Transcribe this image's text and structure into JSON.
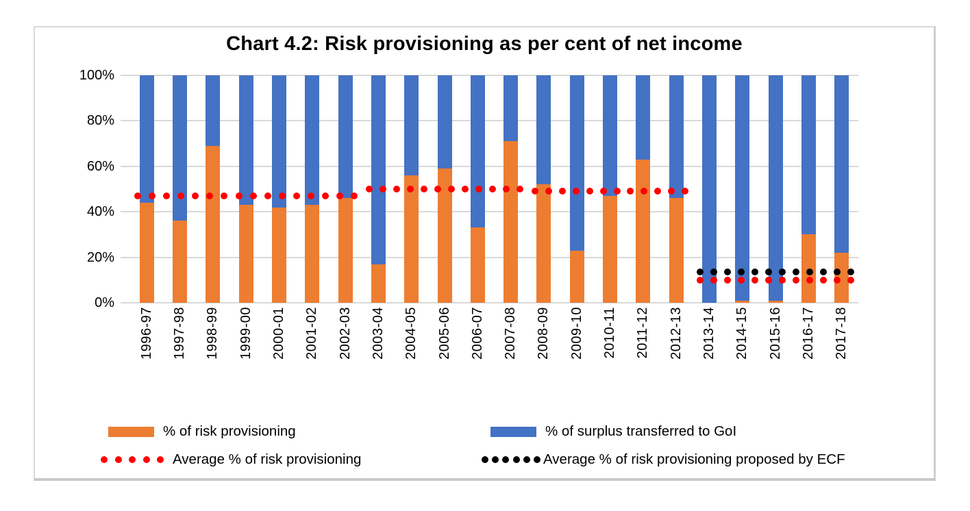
{
  "chart_title": "Chart 4.2: Risk provisioning as per cent of net income",
  "y_axis": {
    "tick_labels": [
      "100%",
      "80%",
      "60%",
      "40%",
      "20%",
      "0%"
    ],
    "tick_values": [
      100,
      80,
      60,
      40,
      20,
      0
    ]
  },
  "chart_data": {
    "type": "bar",
    "stacked": true,
    "stacked_to_100_percent": true,
    "title": "Chart 4.2: Risk provisioning as per cent of net income",
    "categories": [
      "1996-97",
      "1997-98",
      "1998-99",
      "1999-00",
      "2000-01",
      "2001-02",
      "2002-03",
      "2003-04",
      "2004-05",
      "2005-06",
      "2006-07",
      "2007-08",
      "2008-09",
      "2009-10",
      "2010-11",
      "2011-12",
      "2012-13",
      "2013-14",
      "2014-15",
      "2015-16",
      "2016-17",
      "2017-18"
    ],
    "series": [
      {
        "name": "% of risk provisioning",
        "color": "#ED7D31",
        "values": [
          44,
          36,
          69,
          43,
          42,
          43,
          46,
          17,
          56,
          59,
          33,
          71,
          52,
          23,
          47,
          63,
          46,
          0,
          1,
          1,
          30,
          22
        ]
      },
      {
        "name": "% of surplus transferred to GoI",
        "color": "#4472C4",
        "values": [
          56,
          64,
          31,
          57,
          58,
          57,
          54,
          83,
          44,
          41,
          67,
          29,
          48,
          77,
          53,
          37,
          54,
          100,
          99,
          99,
          70,
          78
        ]
      }
    ],
    "average_lines": [
      {
        "name": "Average % of risk provisioning",
        "color": "#FF0000",
        "style": "dotted",
        "segments": [
          {
            "from": "1996-97",
            "to": "2002-03",
            "value": 47
          },
          {
            "from": "2003-04",
            "to": "2007-08",
            "value": 50
          },
          {
            "from": "2008-09",
            "to": "2012-13",
            "value": 49
          },
          {
            "from": "2013-14",
            "to": "2017-18",
            "value": 10
          }
        ]
      },
      {
        "name": "Average % of risk provisioning proposed by ECF",
        "color": "#000000",
        "style": "dotted",
        "segments": [
          {
            "from": "2013-14",
            "to": "2017-18",
            "value": 13.5
          }
        ]
      }
    ],
    "ylim": [
      0,
      100
    ],
    "grid": "horizontal",
    "legend_position": "bottom"
  },
  "legend": {
    "items": [
      {
        "label": "% of risk provisioning",
        "swatch": "bar",
        "color": "#ED7D31"
      },
      {
        "label": "% of surplus transferred to GoI",
        "swatch": "bar",
        "color": "#4472C4"
      },
      {
        "label": "Average % of risk provisioning",
        "swatch": "dots",
        "color": "#FF0000"
      },
      {
        "label": "Average % of risk provisioning proposed by ECF",
        "swatch": "dots",
        "color": "#000000"
      }
    ]
  },
  "colors": {
    "background": "#FFFFFF",
    "frame_border": "#D9D9D9",
    "gridline": "#D9D9D9",
    "text": "#000000"
  }
}
